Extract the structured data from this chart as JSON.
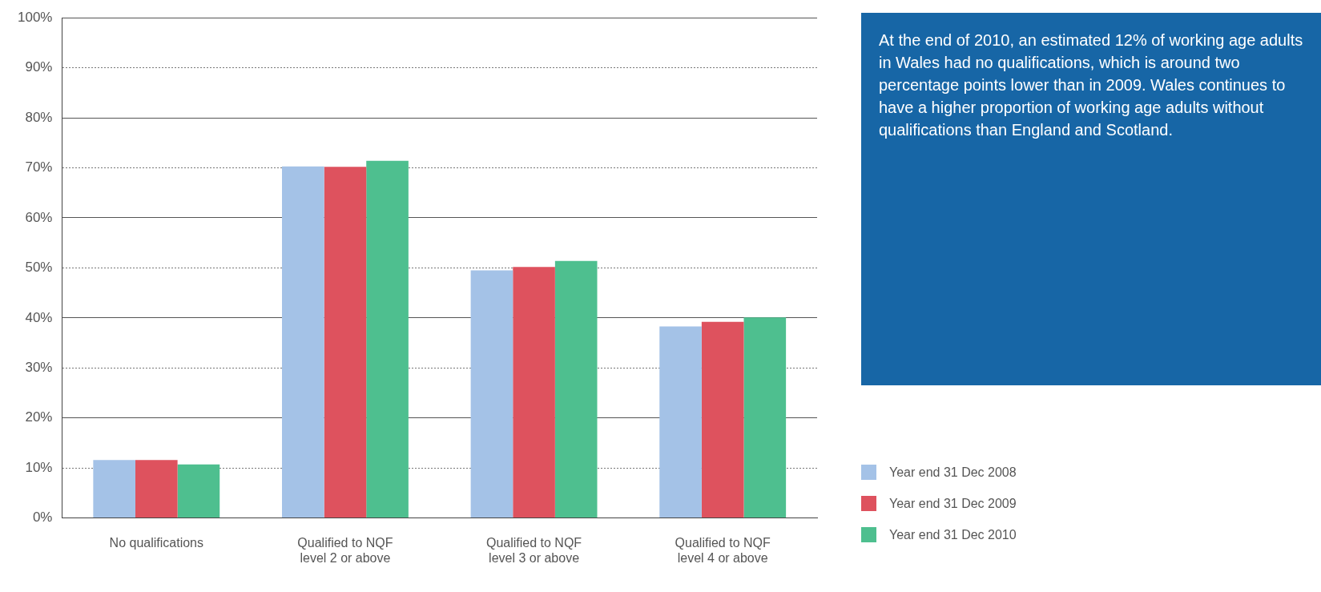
{
  "chart_data": {
    "type": "bar",
    "categories": [
      "No qualifications",
      "Qualified to NQF level 2 or above",
      "Qualified to NQF level 3 or above",
      "Qualified to NQF level 4 or above"
    ],
    "series": [
      {
        "name": "Year end 31 Dec 2008",
        "color": "#a4c2e7",
        "values": [
          11.6,
          70.3,
          49.5,
          38.3
        ]
      },
      {
        "name": "Year end 31 Dec 2009",
        "color": "#de525e",
        "values": [
          11.6,
          70.2,
          50.2,
          39.2
        ]
      },
      {
        "name": "Year end 31 Dec 2010",
        "color": "#4ebf8f",
        "values": [
          10.7,
          71.4,
          51.4,
          40.1
        ]
      }
    ],
    "ylim": [
      0,
      100
    ],
    "yticks": [
      {
        "value": 0,
        "label": "0%"
      },
      {
        "value": 10,
        "label": "10%"
      },
      {
        "value": 20,
        "label": "20%"
      },
      {
        "value": 30,
        "label": "30%"
      },
      {
        "value": 40,
        "label": "40%"
      },
      {
        "value": 50,
        "label": "50%"
      },
      {
        "value": 60,
        "label": "60%"
      },
      {
        "value": 70,
        "label": "70%"
      },
      {
        "value": 80,
        "label": "80%"
      },
      {
        "value": 90,
        "label": "90%"
      },
      {
        "value": 100,
        "label": "100%"
      }
    ],
    "grid": "y",
    "legend": "right",
    "annotations": [
      "At the end of 2010, an estimated 12% of working age adults in Wales had no qualifications, which is around two percentage points lower than in 2009. Wales continues to have a higher proportion of working age adults without qualifications than England and Scotland."
    ]
  }
}
